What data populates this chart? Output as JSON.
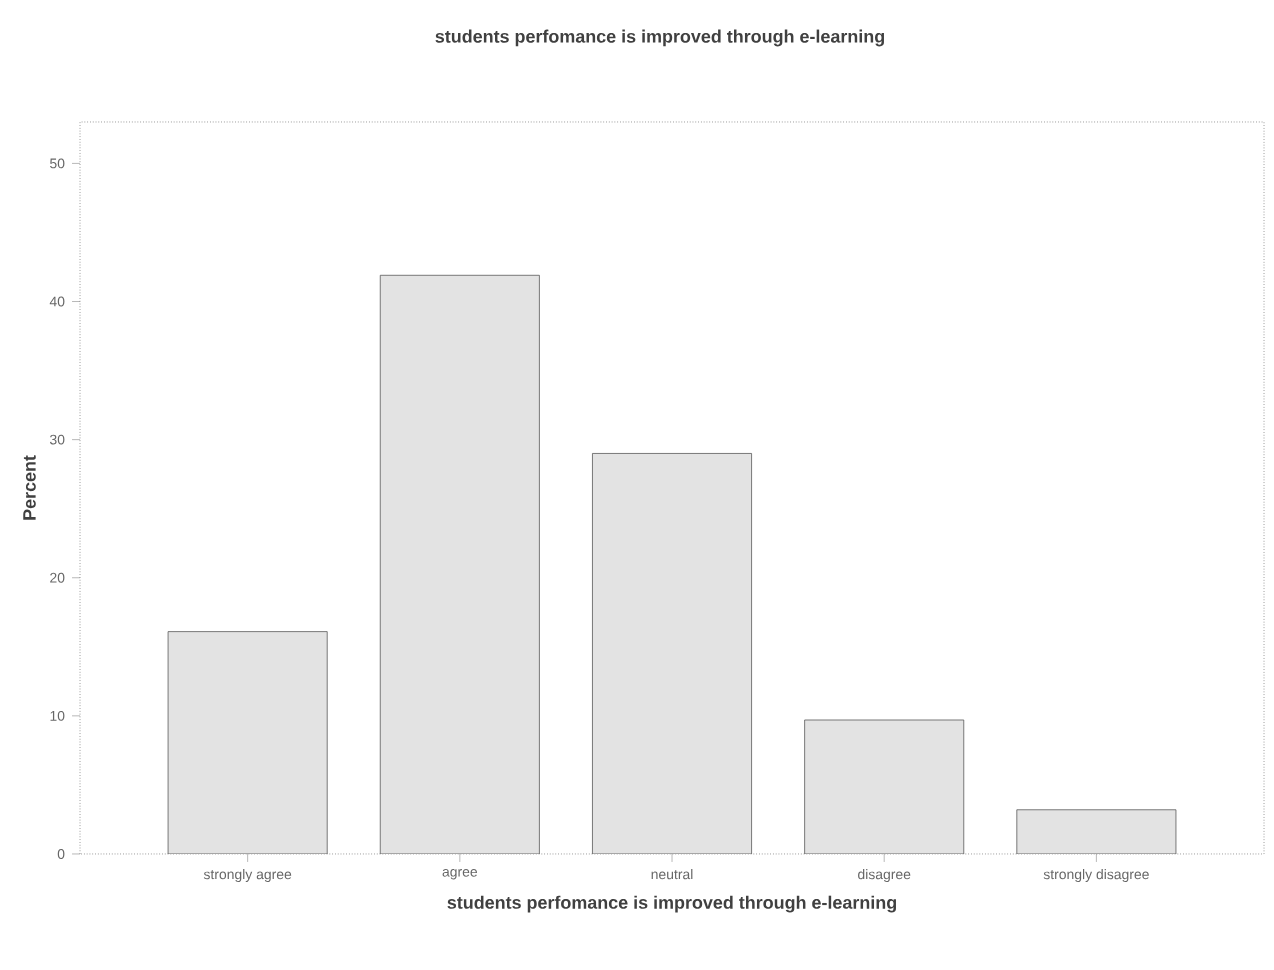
{
  "chart_data": {
    "type": "bar",
    "title": "students perfomance is improved through  e-learning",
    "xlabel": "students perfomance is improved through  e-learning",
    "ylabel": "Percent",
    "categories": [
      "strongly agree",
      "agree",
      "neutral",
      "disagree",
      "strongly disagree"
    ],
    "values": [
      16.1,
      41.9,
      29.0,
      9.7,
      3.2
    ],
    "color": "#e3e3e3",
    "ylim": [
      0,
      53
    ],
    "yticks": [
      0,
      10,
      20,
      30,
      40,
      50
    ],
    "grid": false
  }
}
